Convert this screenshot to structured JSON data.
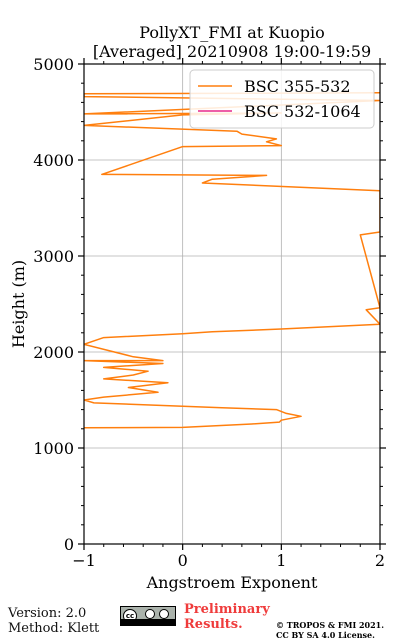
{
  "chart_data": {
    "type": "line",
    "title_line1": "PollyXT_FMI at Kuopio",
    "title_line2": "[Averaged] 20210908 19:00-19:59",
    "xlabel": "Angstroem Exponent",
    "ylabel": "Height (m)",
    "xlim": [
      -1,
      2
    ],
    "ylim": [
      0,
      5000
    ],
    "x_ticks": [
      -1,
      0,
      1,
      2
    ],
    "y_ticks": [
      0,
      1000,
      2000,
      3000,
      4000,
      5000
    ],
    "x_tick_labels": [
      "−1",
      "0",
      "1",
      "2"
    ],
    "y_tick_labels": [
      "0",
      "1000",
      "2000",
      "3000",
      "4000",
      "5000"
    ],
    "grid": true,
    "legend_position": "top-right",
    "series": [
      {
        "name": "BSC 355-532",
        "color": "#ff7f0e",
        "points": [
          [
            -1.0,
            1210
          ],
          [
            0.0,
            1215
          ],
          [
            0.7,
            1250
          ],
          [
            0.98,
            1270
          ],
          [
            1.0,
            1290
          ],
          [
            1.2,
            1330
          ],
          [
            1.05,
            1360
          ],
          [
            0.95,
            1400
          ],
          [
            0.4,
            1420
          ],
          [
            -0.9,
            1470
          ],
          [
            -1.0,
            1500
          ],
          [
            -0.8,
            1530
          ],
          [
            -0.25,
            1580
          ],
          [
            -0.55,
            1630
          ],
          [
            -0.15,
            1680
          ],
          [
            -0.8,
            1720
          ],
          [
            -0.5,
            1760
          ],
          [
            -0.35,
            1800
          ],
          [
            -0.8,
            1840
          ],
          [
            -0.2,
            1880
          ],
          [
            -1.0,
            1910
          ],
          [
            -0.2,
            1910
          ],
          [
            -0.5,
            1950
          ],
          [
            -1.0,
            2080
          ],
          [
            -0.8,
            2150
          ],
          [
            0.0,
            2190
          ],
          [
            0.3,
            2210
          ],
          [
            1.0,
            2240
          ],
          [
            2.0,
            2290
          ],
          [
            1.86,
            2440
          ],
          [
            2.0,
            2460
          ],
          [
            1.8,
            3220
          ],
          [
            2.0,
            3250
          ],
          [
            2.0,
            3680
          ],
          [
            0.2,
            3760
          ],
          [
            0.3,
            3800
          ],
          [
            0.85,
            3840
          ],
          [
            -0.82,
            3850
          ],
          [
            0.0,
            4140
          ],
          [
            1.0,
            4150
          ],
          [
            0.85,
            4190
          ],
          [
            0.95,
            4220
          ],
          [
            0.6,
            4270
          ],
          [
            0.55,
            4300
          ],
          [
            -1.0,
            4360
          ],
          [
            0.0,
            4470
          ],
          [
            1.0,
            4490
          ],
          [
            -1.0,
            4480
          ],
          [
            2.0,
            4620
          ],
          [
            -1.0,
            4660
          ],
          [
            -1.0,
            4690
          ],
          [
            2.0,
            4700
          ]
        ]
      },
      {
        "name": "BSC 532-1064",
        "color": "#e7298a",
        "points": []
      }
    ]
  },
  "footer": {
    "version_label": "Version: 2.0",
    "method_label": "Method: Klett",
    "preliminary_line1": "Preliminary",
    "preliminary_line2": "Results.",
    "preliminary_color": "#ef3b3b",
    "copyright_line1": "© TROPOS & FMI 2021.",
    "copyright_line2": "CC BY SA 4.0 License.",
    "license_badge_text": "cc"
  }
}
